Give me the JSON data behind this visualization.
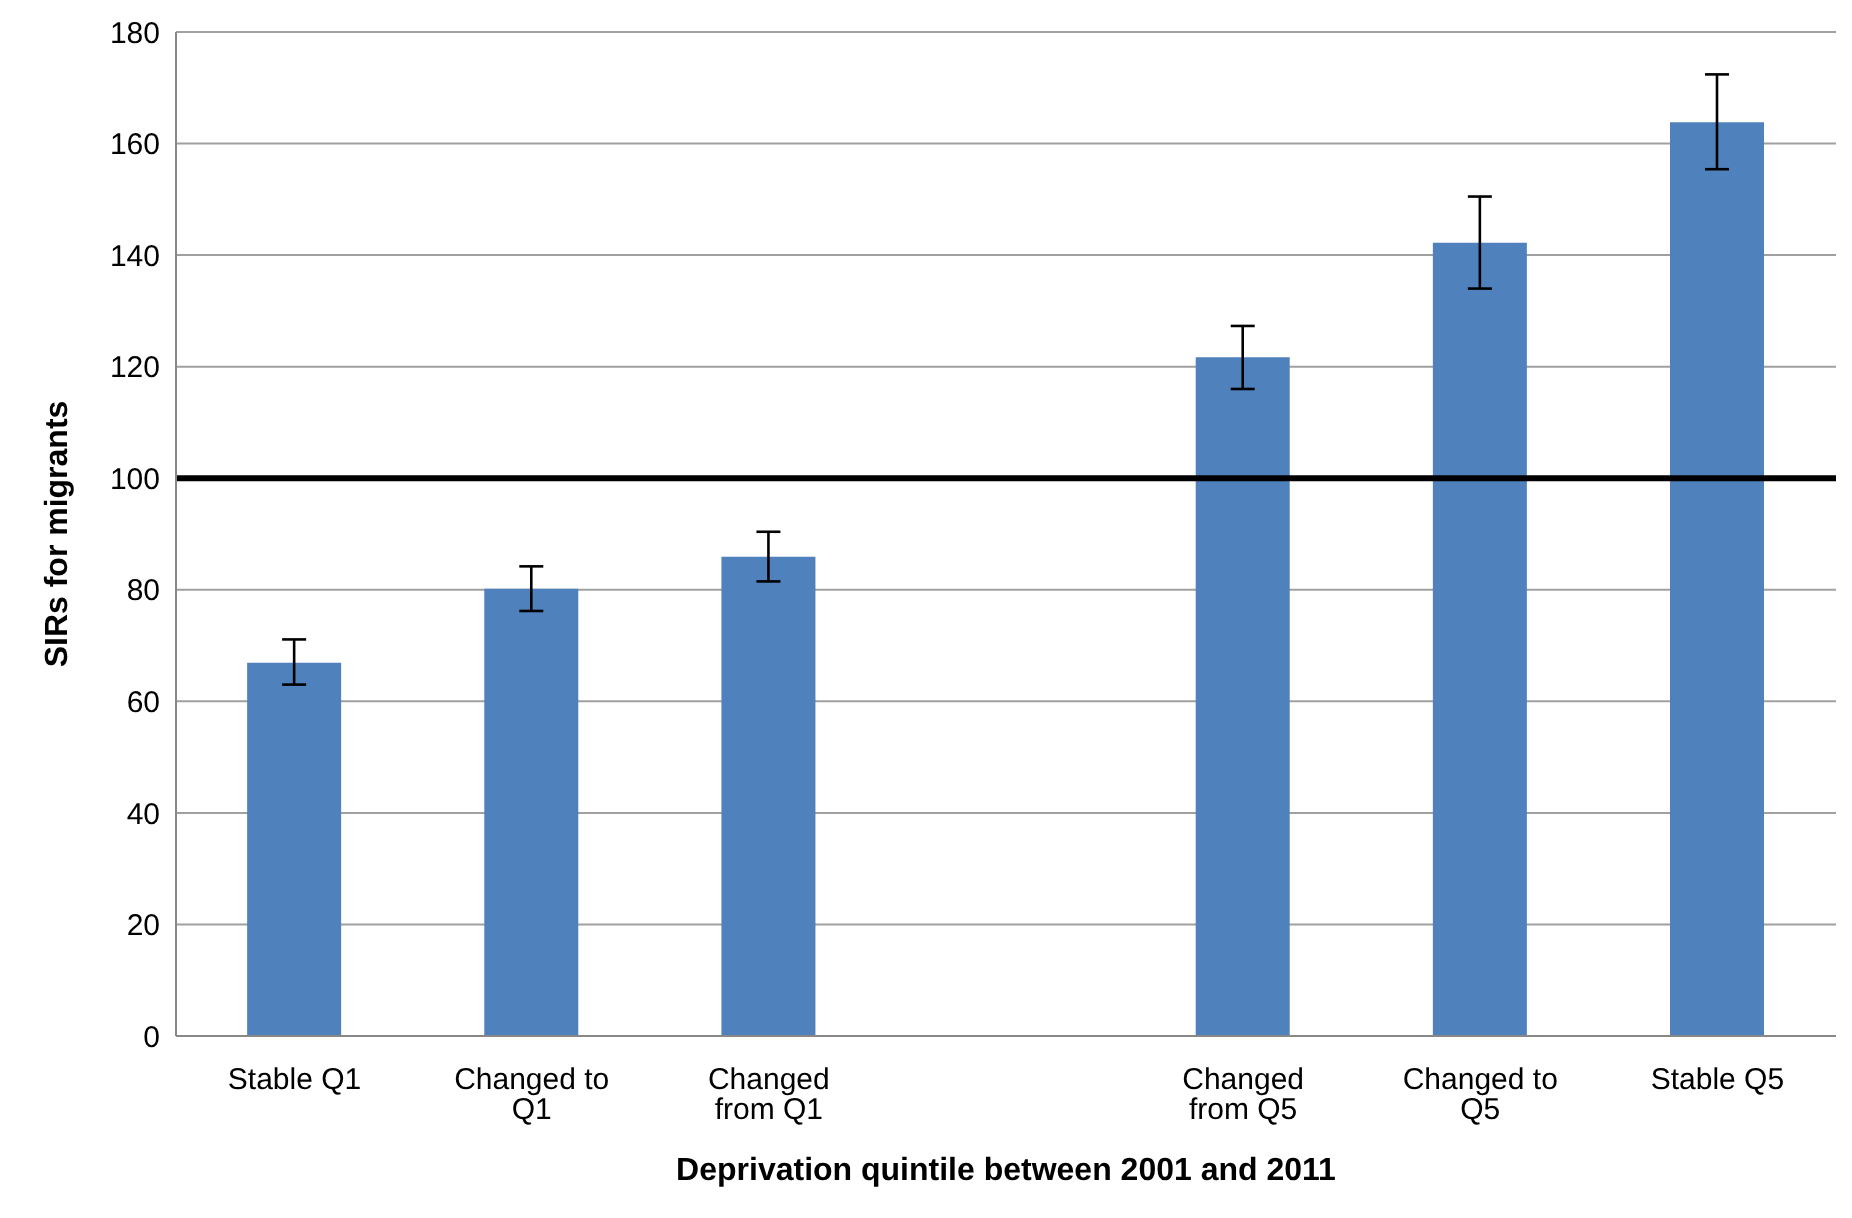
{
  "chart_data": {
    "type": "bar",
    "xlabel": "Deprivation quintile between 2001 and 2011",
    "ylabel": "SIRs for migrants",
    "categories": [
      "Stable Q1",
      "Changed to Q1",
      "Changed from Q1",
      null,
      "Changed from Q5",
      "Changed to Q5",
      "Stable Q5"
    ],
    "values": [
      66.9,
      80.2,
      85.9,
      null,
      121.7,
      142.2,
      163.8
    ],
    "errors": [
      [
        63,
        71.1
      ],
      [
        76.2,
        84.2
      ],
      [
        81.5,
        90.4
      ],
      null,
      [
        116,
        127.3
      ],
      [
        134,
        150.5
      ],
      [
        155.4,
        172.4
      ]
    ],
    "color": "#4f81bd",
    "ylim": [
      0,
      180
    ],
    "yticks": [
      0,
      20,
      40,
      60,
      80,
      100,
      120,
      140,
      160,
      180
    ],
    "grid": "y",
    "ref_lines": [
      {
        "axis": "y",
        "value": 100,
        "color": "#000000"
      }
    ]
  }
}
